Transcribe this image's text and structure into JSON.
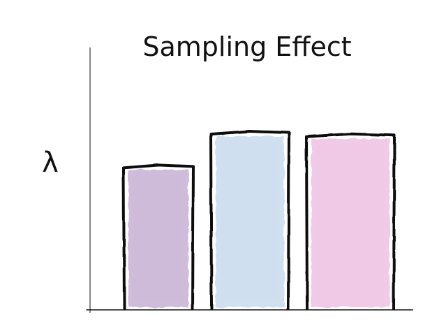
{
  "chart_data": {
    "type": "bar",
    "title": "Sampling Effect",
    "ylabel": "λ",
    "xlabel": "",
    "categories": [
      "",
      "",
      ""
    ],
    "values": [
      0.55,
      0.68,
      0.67
    ],
    "ylim": [
      0,
      1
    ],
    "grid": false,
    "legend": "none",
    "colors": [
      "#cdb9d9",
      "#cfdff0",
      "#f0c8e6"
    ],
    "stroke_color": "#111111"
  }
}
